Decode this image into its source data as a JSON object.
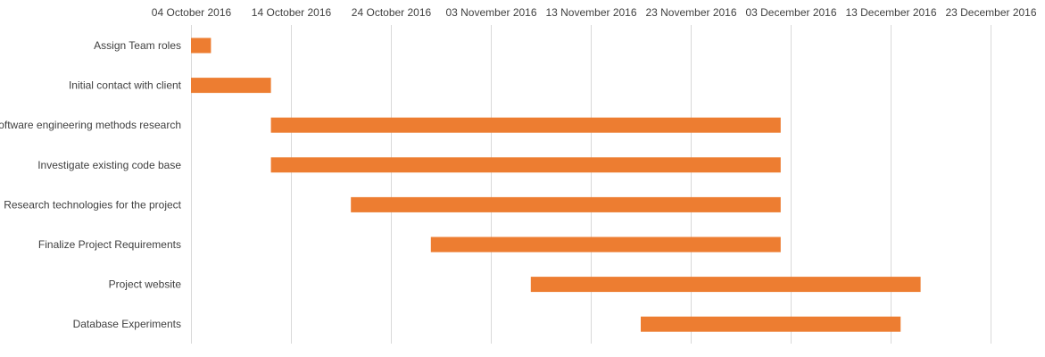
{
  "chart_data": {
    "type": "bar",
    "orientation": "horizontal",
    "title": "",
    "xlabel": "",
    "ylabel": "",
    "x_axis_position": "top",
    "xlim": [
      "2016-10-04",
      "2016-12-23"
    ],
    "x_ticks": [
      "04 October 2016",
      "14 October 2016",
      "24 October 2016",
      "03 November 2016",
      "13 November 2016",
      "23 November 2016",
      "03 December 2016",
      "13 December 2016",
      "23 December 2016"
    ],
    "x_tick_dates": [
      "2016-10-04",
      "2016-10-14",
      "2016-10-24",
      "2016-11-03",
      "2016-11-13",
      "2016-11-23",
      "2016-12-03",
      "2016-12-13",
      "2016-12-23"
    ],
    "grid": true,
    "legend": "none",
    "bar_color": "#ed7d31",
    "gridline_color": "#d9d9d9",
    "label_color": "#404040",
    "tasks": [
      {
        "name": "Assign Team roles",
        "start": "2016-10-04",
        "end": "2016-10-06"
      },
      {
        "name": "Initial contact with client",
        "start": "2016-10-04",
        "end": "2016-10-12"
      },
      {
        "name": "Software engineering methods research",
        "start": "2016-10-12",
        "end": "2016-12-02"
      },
      {
        "name": "Investigate existing code base",
        "start": "2016-10-12",
        "end": "2016-12-02"
      },
      {
        "name": "Research technologies for the project",
        "start": "2016-10-20",
        "end": "2016-12-02"
      },
      {
        "name": "Finalize Project Requirements",
        "start": "2016-10-28",
        "end": "2016-12-02"
      },
      {
        "name": "Project website",
        "start": "2016-11-07",
        "end": "2016-12-16"
      },
      {
        "name": "Database Experiments",
        "start": "2016-11-18",
        "end": "2016-12-14"
      }
    ]
  }
}
